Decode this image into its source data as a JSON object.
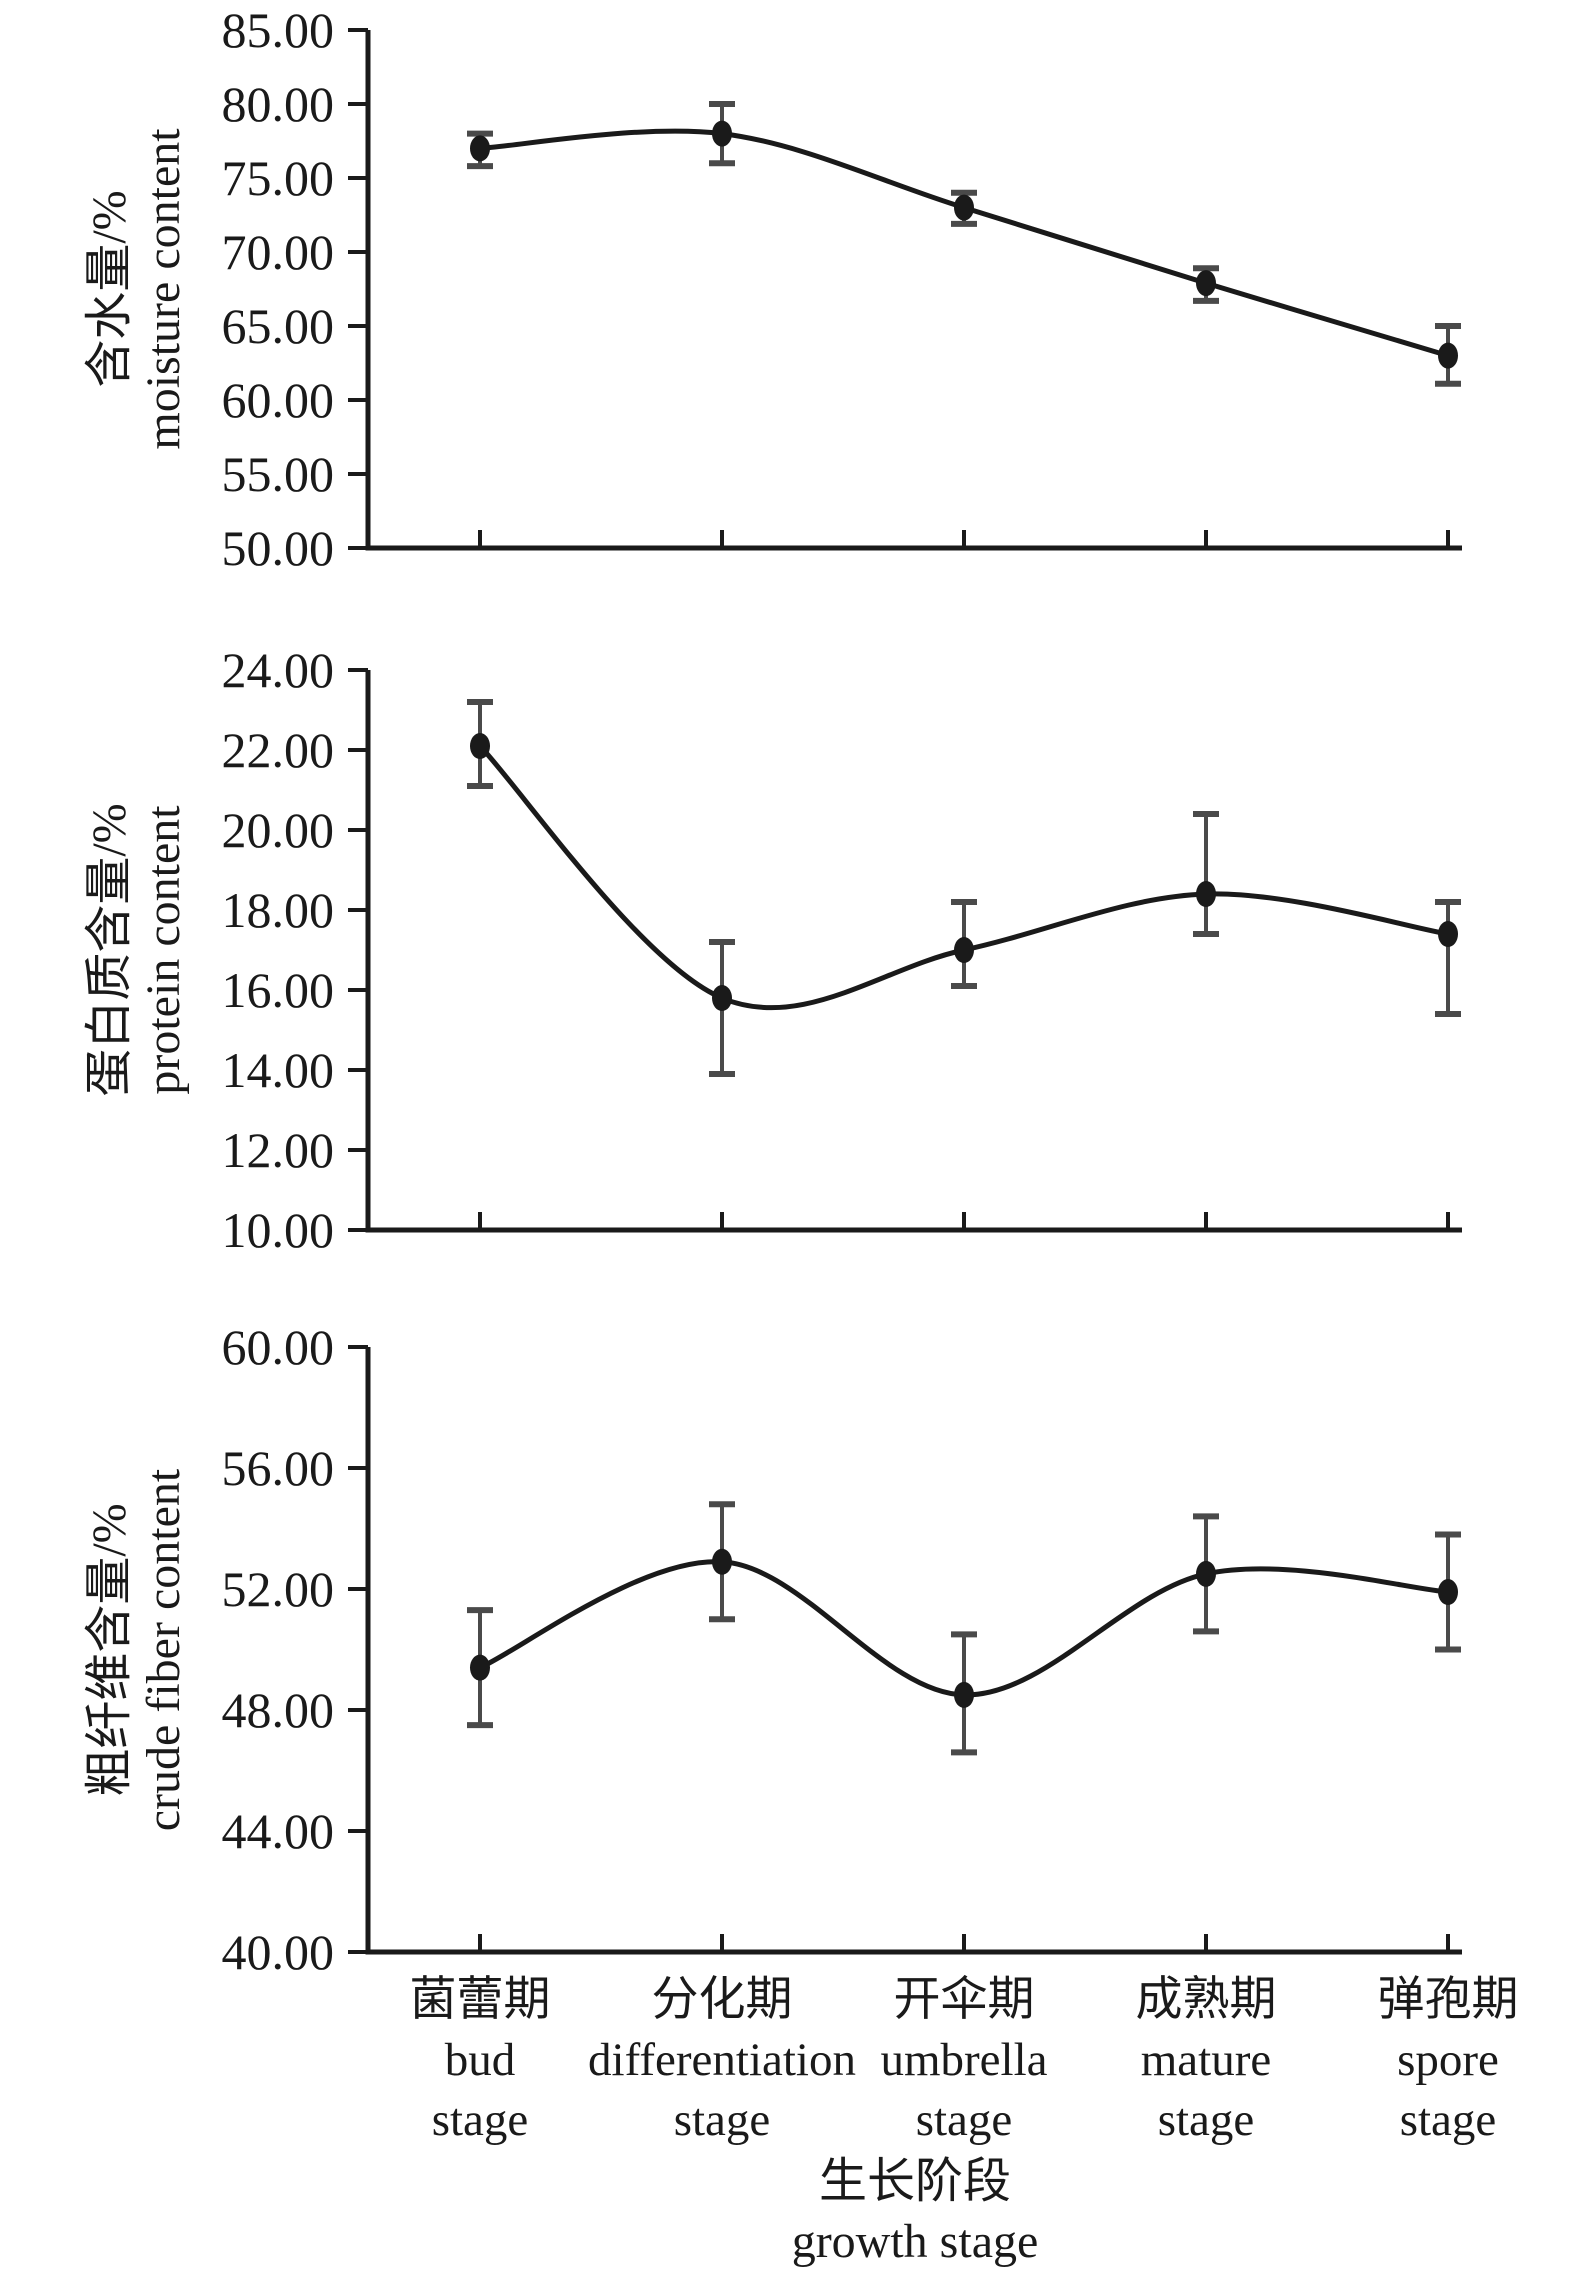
{
  "x_axis": {
    "title_zh": "生长阶段",
    "title_en": "growth stage",
    "categories": [
      {
        "zh": "菌蕾期",
        "en": "bud",
        "suffix": "stage"
      },
      {
        "zh": "分化期",
        "en": "differentiation",
        "suffix": "stage"
      },
      {
        "zh": "开伞期",
        "en": "umbrella",
        "suffix": "stage"
      },
      {
        "zh": "成熟期",
        "en": "mature",
        "suffix": "stage"
      },
      {
        "zh": "弹孢期",
        "en": "spore",
        "suffix": "stage"
      }
    ]
  },
  "style": {
    "line_color": "#1a1a1a",
    "error_color": "#4a4a4a",
    "marker": "filled-ellipse",
    "background": "#ffffff"
  },
  "chart_data": [
    {
      "type": "line",
      "title": "",
      "ylabel_zh": "含水量/%",
      "ylabel_en": "moisture content",
      "xlabel": "生长阶段 growth stage",
      "grid": false,
      "legend": "none",
      "ylim": [
        50,
        85
      ],
      "ytick_step": 5,
      "ytick_labels": [
        "85.00",
        "80.00",
        "75.00",
        "70.00",
        "65.00",
        "60.00",
        "55.00",
        "50.00"
      ],
      "categories": [
        "bud stage",
        "differentiation stage",
        "umbrella stage",
        "mature stage",
        "spore stage"
      ],
      "values": [
        77.0,
        78.0,
        73.0,
        67.9,
        63.0
      ],
      "error_up": [
        1.0,
        2.0,
        1.0,
        1.0,
        2.0
      ],
      "error_down": [
        1.2,
        2.0,
        1.1,
        1.2,
        1.9
      ]
    },
    {
      "type": "line",
      "title": "",
      "ylabel_zh": "蛋白质含量/%",
      "ylabel_en": "protein content",
      "xlabel": "生长阶段 growth stage",
      "grid": false,
      "legend": "none",
      "ylim": [
        10,
        24
      ],
      "ytick_step": 2,
      "ytick_labels": [
        "24.00",
        "22.00",
        "20.00",
        "18.00",
        "16.00",
        "14.00",
        "12.00",
        "10.00"
      ],
      "categories": [
        "bud stage",
        "differentiation stage",
        "umbrella stage",
        "mature stage",
        "spore stage"
      ],
      "values": [
        22.1,
        15.8,
        17.0,
        18.4,
        17.4
      ],
      "error_up": [
        1.1,
        1.4,
        1.2,
        2.0,
        0.8
      ],
      "error_down": [
        1.0,
        1.9,
        0.9,
        1.0,
        2.0
      ]
    },
    {
      "type": "line",
      "title": "",
      "ylabel_zh": "粗纤维含量/%",
      "ylabel_en": "crude fiber content",
      "xlabel": "生长阶段 growth stage",
      "grid": false,
      "legend": "none",
      "ylim": [
        40,
        60
      ],
      "ytick_step": 4,
      "ytick_labels": [
        "60.00",
        "56.00",
        "52.00",
        "48.00",
        "44.00",
        "40.00"
      ],
      "categories": [
        "bud stage",
        "differentiation stage",
        "umbrella stage",
        "mature stage",
        "spore stage"
      ],
      "values": [
        49.4,
        52.9,
        48.5,
        52.5,
        51.9
      ],
      "error_up": [
        1.9,
        1.9,
        2.0,
        1.9,
        1.9
      ],
      "error_down": [
        1.9,
        1.9,
        1.9,
        1.9,
        1.9
      ]
    }
  ]
}
